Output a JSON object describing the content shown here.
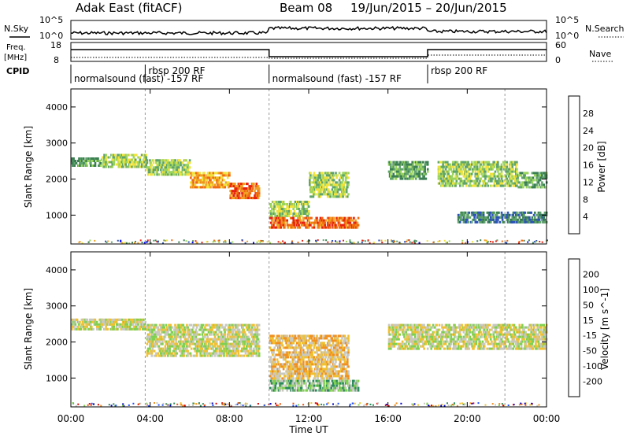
{
  "header": {
    "station": "Adak East (fitACF)",
    "beam": "Beam 08",
    "date_range": "19/Jun/2015 – 20/Jun/2015"
  },
  "strips": {
    "noise_sky_label": "N.Sky",
    "noise_search_label": "N.Search",
    "noise_tick_top": "10^5",
    "noise_tick_bottom": "10^0",
    "freq_label": "Freq.",
    "freq_unit": "[MHz]",
    "freq_tick_top": "18",
    "freq_tick_bottom": "8",
    "nave_label": "Nave",
    "nave_tick_top": "60",
    "nave_tick_bottom": "0",
    "cpid_label": "CPID",
    "cpid_segments": [
      {
        "label": "normalsound (fast) -157 RF",
        "start_h": 0.0,
        "end_h": 3.75
      },
      {
        "label": "rbsp 200 RF",
        "start_h": 3.75,
        "end_h": 10.0
      },
      {
        "label": "normalsound (fast) -157 RF",
        "start_h": 10.0,
        "end_h": 18.0
      },
      {
        "label": "rbsp 200 RF",
        "start_h": 18.0,
        "end_h": 21.9
      }
    ]
  },
  "x_axis": {
    "label": "Time UT",
    "ticks": [
      "00:00",
      "04:00",
      "08:00",
      "12:00",
      "16:00",
      "20:00",
      "00:00"
    ]
  },
  "colors": {
    "power": [
      "#0000ff",
      "#2a52b8",
      "#3a7e52",
      "#5fa36b",
      "#9ad45b",
      "#f0e23a",
      "#f0a020",
      "#f06a10",
      "#e62010"
    ],
    "velocity": [
      "#0000c8",
      "#2050ff",
      "#2a8a5a",
      "#80d050",
      "#c8c8c0",
      "#f0c030",
      "#f09020",
      "#f05010",
      "#e00000"
    ]
  },
  "chart_data": [
    {
      "type": "heatmap",
      "name": "power",
      "ylabel": "Slant Range [km]",
      "ylim": [
        200,
        4500
      ],
      "yticks": [
        1000,
        2000,
        3000,
        4000
      ],
      "xlim_hours": [
        0,
        24
      ],
      "colorbar": {
        "label": "Power [dB]",
        "range": [
          0,
          30
        ],
        "ticks": [
          "4",
          "8",
          "12",
          "16",
          "20",
          "24",
          "28"
        ]
      },
      "echo_bands": [
        {
          "start_h": 0.0,
          "end_h": 1.5,
          "range_km": [
            2350,
            2600
          ],
          "level": 3
        },
        {
          "start_h": 1.5,
          "end_h": 3.8,
          "range_km": [
            2350,
            2700
          ],
          "level": 4
        },
        {
          "start_h": 3.8,
          "end_h": 6.0,
          "range_km": [
            2100,
            2550
          ],
          "level": 4
        },
        {
          "start_h": 6.0,
          "end_h": 8.0,
          "range_km": [
            1800,
            2200
          ],
          "level": 6
        },
        {
          "start_h": 8.0,
          "end_h": 9.5,
          "range_km": [
            1500,
            1900
          ],
          "level": 7
        },
        {
          "start_h": 10.0,
          "end_h": 12.0,
          "range_km": [
            1000,
            1400
          ],
          "level": 4
        },
        {
          "start_h": 12.0,
          "end_h": 14.0,
          "range_km": [
            1500,
            2200
          ],
          "level": 4
        },
        {
          "start_h": 10.0,
          "end_h": 14.5,
          "range_km": [
            650,
            950
          ],
          "level": 7
        },
        {
          "start_h": 16.0,
          "end_h": 18.0,
          "range_km": [
            2000,
            2500
          ],
          "level": 3
        },
        {
          "start_h": 18.5,
          "end_h": 22.5,
          "range_km": [
            1800,
            2500
          ],
          "level": 4
        },
        {
          "start_h": 22.5,
          "end_h": 24.0,
          "range_km": [
            1800,
            2200
          ],
          "level": 3
        },
        {
          "start_h": 19.5,
          "end_h": 24.0,
          "range_km": [
            800,
            1100
          ],
          "level": 2
        }
      ]
    },
    {
      "type": "heatmap",
      "name": "velocity",
      "ylabel": "Slant Range [km]",
      "ylim": [
        200,
        4500
      ],
      "yticks": [
        1000,
        2000,
        3000,
        4000
      ],
      "xlim_hours": [
        0,
        24
      ],
      "colorbar": {
        "label": "Velocity [m s^-1]",
        "range": [
          -250,
          250
        ],
        "ticks": [
          "200",
          "100",
          "50",
          "15",
          "-15",
          "-50",
          "-100",
          "-200"
        ]
      },
      "echo_bands": [
        {
          "start_h": 0.0,
          "end_h": 3.8,
          "range_km": [
            2350,
            2650
          ],
          "level": 4
        },
        {
          "start_h": 3.8,
          "end_h": 9.5,
          "range_km": [
            1600,
            2500
          ],
          "level": 4
        },
        {
          "start_h": 10.0,
          "end_h": 14.0,
          "range_km": [
            1000,
            2200
          ],
          "level": 5
        },
        {
          "start_h": 10.0,
          "end_h": 14.5,
          "range_km": [
            650,
            950
          ],
          "level": 3
        },
        {
          "start_h": 16.0,
          "end_h": 24.0,
          "range_km": [
            1800,
            2500
          ],
          "level": 4
        }
      ]
    }
  ]
}
